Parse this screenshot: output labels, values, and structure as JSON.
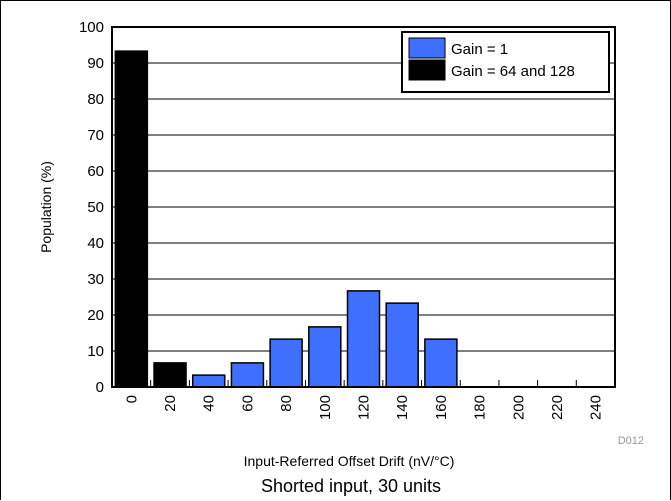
{
  "chart_data": {
    "type": "bar",
    "categories": [
      "0",
      "20",
      "40",
      "60",
      "80",
      "100",
      "120",
      "140",
      "160",
      "180",
      "200",
      "220",
      "240"
    ],
    "series": [
      {
        "name": "Gain = 1",
        "color": "#3f6fff",
        "values": [
          0,
          0,
          3.3,
          6.7,
          13.3,
          16.7,
          26.7,
          23.3,
          13.3,
          0,
          0,
          0,
          0
        ]
      },
      {
        "name": "Gain = 64 and 128",
        "color": "#000000",
        "values": [
          93.3,
          6.7,
          0,
          0,
          0,
          0,
          0,
          0,
          0,
          0,
          0,
          0,
          0
        ]
      }
    ],
    "xlabel": "Input-Referred Offset Drift (nV/°C)",
    "ylabel": "Population (%)",
    "ylim": [
      0,
      100
    ],
    "yticks": [
      0,
      10,
      20,
      30,
      40,
      50,
      60,
      70,
      80,
      90,
      100
    ],
    "grid": true,
    "legend": "top-right",
    "code": "D012",
    "caption": "Shorted input, 30 units"
  }
}
